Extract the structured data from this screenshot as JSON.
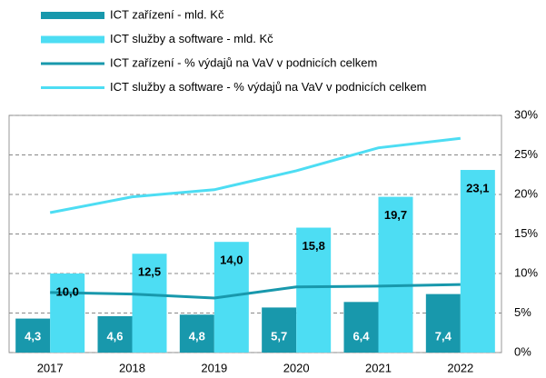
{
  "chart_data": {
    "type": "bar-line",
    "categories": [
      "2017",
      "2018",
      "2019",
      "2020",
      "2021",
      "2022"
    ],
    "series": [
      {
        "name": "ICT zařízení - mld. Kč",
        "color": "#1898ac",
        "kind": "bar",
        "values": [
          4.3,
          4.6,
          4.8,
          5.7,
          6.4,
          7.4
        ],
        "value_labels": [
          "4,3",
          "4,6",
          "4,8",
          "5,7",
          "6,4",
          "7,4"
        ]
      },
      {
        "name": "ICT služby a software - mld. Kč",
        "color": "#4dddf3",
        "kind": "bar",
        "values": [
          10.0,
          12.5,
          14.0,
          15.8,
          19.7,
          23.1
        ],
        "value_labels": [
          "10,0",
          "12,5",
          "14,0",
          "15,8",
          "19,7",
          "23,1"
        ]
      },
      {
        "name": "ICT zařízení - % výdajů na VaV v podnicích celkem",
        "color": "#1898ac",
        "kind": "line",
        "axis": "y2",
        "values": [
          7.6,
          7.4,
          6.9,
          8.3,
          8.4,
          8.6
        ]
      },
      {
        "name": "ICT služby a software - % výdajů na VaV v podnicích celkem",
        "color": "#4dddf3",
        "kind": "line",
        "axis": "y2",
        "values": [
          17.7,
          19.7,
          20.6,
          23.0,
          25.9,
          27.1
        ]
      }
    ],
    "ylim": [
      0,
      30
    ],
    "y2lim": [
      0,
      30
    ],
    "y2ticks": [
      {
        "value": 0,
        "label": "0%"
      },
      {
        "value": 5,
        "label": "5%"
      },
      {
        "value": 10,
        "label": "10%"
      },
      {
        "value": 15,
        "label": "15%"
      },
      {
        "value": 20,
        "label": "20%"
      },
      {
        "value": 25,
        "label": "25%"
      },
      {
        "value": 30,
        "label": "30%"
      }
    ],
    "grid": true
  }
}
